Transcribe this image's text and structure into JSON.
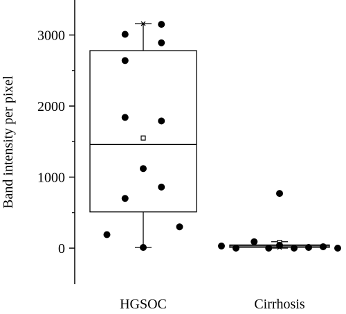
{
  "chart_data": {
    "type": "box",
    "title": "",
    "xlabel": "",
    "ylabel": "Band intensity per pixel",
    "ylim": [
      -500,
      3500
    ],
    "yticks": [
      0,
      1000,
      2000,
      3000
    ],
    "ytick_labels": [
      "0",
      "1000",
      "2000",
      "3000"
    ],
    "grid": false,
    "legend": "none",
    "categories": [
      "HGSOC",
      "Cirrhosis"
    ],
    "series": [
      {
        "category": "HGSOC",
        "q1": 510,
        "median": 1460,
        "q3": 2780,
        "whisker_low": 10,
        "whisker_high": 3160,
        "mean": 1550,
        "max_marker": 3160,
        "points": [
          {
            "pos": -0.5,
            "y": 190
          },
          {
            "pos": 0.0,
            "y": 10
          },
          {
            "pos": 0.5,
            "y": 300
          },
          {
            "pos": -0.25,
            "y": 700
          },
          {
            "pos": 0.25,
            "y": 860
          },
          {
            "pos": 0.0,
            "y": 1120
          },
          {
            "pos": -0.25,
            "y": 1840
          },
          {
            "pos": 0.25,
            "y": 1790
          },
          {
            "pos": -0.25,
            "y": 2640
          },
          {
            "pos": 0.25,
            "y": 2890
          },
          {
            "pos": -0.25,
            "y": 3010
          },
          {
            "pos": 0.25,
            "y": 3150
          }
        ]
      },
      {
        "category": "Cirrhosis",
        "q1": 10,
        "median": 30,
        "q3": 45,
        "whisker_low": 0,
        "whisker_high": 90,
        "mean": 80,
        "max_marker": 10,
        "points": [
          {
            "pos": -0.8,
            "y": 30
          },
          {
            "pos": -0.6,
            "y": 0
          },
          {
            "pos": -0.35,
            "y": 90
          },
          {
            "pos": -0.15,
            "y": 0
          },
          {
            "pos": 0.0,
            "y": 40
          },
          {
            "pos": 0.0,
            "y": 770
          },
          {
            "pos": 0.2,
            "y": 0
          },
          {
            "pos": 0.4,
            "y": 10
          },
          {
            "pos": 0.6,
            "y": 20
          },
          {
            "pos": 0.8,
            "y": 0
          }
        ]
      }
    ]
  },
  "colors": {
    "box_stroke": "#000000",
    "point_fill": "#000000",
    "background": "#ffffff"
  }
}
